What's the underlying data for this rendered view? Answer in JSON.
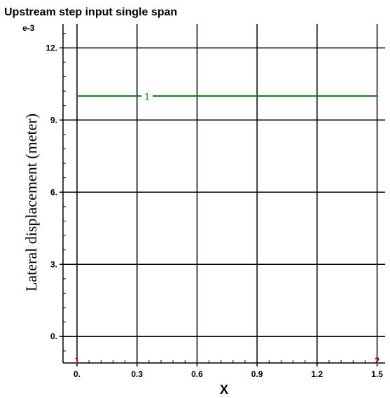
{
  "chart_data": {
    "type": "line",
    "title": "Upstream step input single span",
    "xlabel": "X",
    "ylabel": "Lateral displacement (meter)",
    "y_multiplier_label": "e-3",
    "xlim": [
      -0.07,
      1.54
    ],
    "ylim": [
      -1.1,
      13.0
    ],
    "x_ticks": [
      0,
      0.3,
      0.6,
      0.9,
      1.2,
      1.5
    ],
    "x_tick_labels": [
      "0.",
      "0.3",
      "0.6",
      "0.9",
      "1.2",
      "1.5"
    ],
    "y_ticks": [
      0,
      3,
      6,
      9,
      12
    ],
    "y_tick_labels": [
      "0.",
      "3.",
      "6.",
      "9.",
      "12."
    ],
    "grid": true,
    "series": [
      {
        "label_text": "1",
        "color": "#1a7a1a",
        "x": [
          0,
          1.5
        ],
        "y": [
          10,
          10
        ],
        "label_at_x": 0.35
      }
    ],
    "node_markers": [
      {
        "label": "1",
        "x": 0,
        "color": "#8b1a1a"
      },
      {
        "label": "2",
        "x": 1.5,
        "color": "#8b1a1a"
      }
    ]
  }
}
